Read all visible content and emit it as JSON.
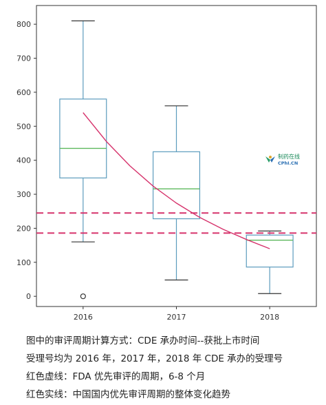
{
  "chart_data": {
    "type": "box",
    "categories": [
      "2016",
      "2017",
      "2018"
    ],
    "y_ticks": [
      0,
      100,
      200,
      300,
      400,
      500,
      600,
      700,
      800
    ],
    "ylim": [
      -30,
      855
    ],
    "boxes": [
      {
        "category": "2016",
        "whisker_low": 160,
        "q1": 348,
        "median": 435,
        "q3": 580,
        "whisker_high": 810,
        "outliers": [
          0
        ]
      },
      {
        "category": "2017",
        "whisker_low": 48,
        "q1": 228,
        "median": 316,
        "q3": 425,
        "whisker_high": 560,
        "outliers": []
      },
      {
        "category": "2018",
        "whisker_low": 8,
        "q1": 86,
        "median": 165,
        "q3": 180,
        "whisker_high": 192,
        "outliers": []
      }
    ],
    "reference_lines": [
      {
        "style": "dashed",
        "color": "#d6336c",
        "y": 245
      },
      {
        "style": "dashed",
        "color": "#d6336c",
        "y": 186
      }
    ],
    "trend_curve": {
      "style": "solid",
      "color": "#d6336c",
      "x": [
        1,
        1.25,
        1.5,
        1.75,
        2,
        2.25,
        2.5,
        2.75,
        3
      ],
      "y": [
        540,
        455,
        384,
        324,
        274,
        232,
        197,
        167,
        140
      ]
    },
    "colors": {
      "box": "#5b9bbd",
      "median": "#5cb85c",
      "whisker": "#333333",
      "reference": "#d6336c"
    }
  },
  "watermark": {
    "line1": "制药在线",
    "line2": "CPhI.CN"
  },
  "caption": {
    "line1": "图中的审评周期计算方式：CDE 承办时间--获批上市时间",
    "line2": "受理号均为 2016 年，2017 年，2018 年 CDE 承办的受理号",
    "line3": "红色虚线：FDA 优先审评的周期，6-8 个月",
    "line4": "红色实线：中国国内优先审评周期的整体变化趋势"
  }
}
